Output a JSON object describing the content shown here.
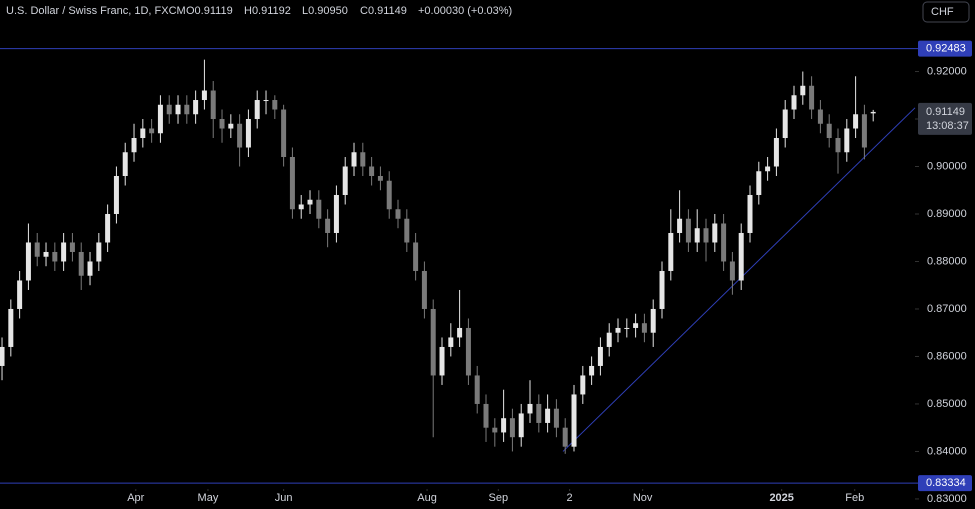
{
  "chart_data": {
    "type": "candlestick",
    "title": "U.S. Dollar / Swiss Franc, 1D, FXCM",
    "ohlc_text": [
      "O0.91119",
      "H0.91192",
      "L0.90950",
      "C0.91149",
      "+0.00030 (+0.03%)"
    ],
    "currency": "CHF",
    "countdown": "13:08:37",
    "up_color": "#e6e6e6",
    "down_color": "#7a7a7a",
    "level_color": "#2f3fb8",
    "open": [
      0.858,
      0.862,
      0.87,
      0.876,
      0.884,
      0.881,
      0.882,
      0.88,
      0.884,
      0.882,
      0.877,
      0.88,
      0.884,
      0.89,
      0.898,
      0.903,
      0.906,
      0.908,
      0.907,
      0.913,
      0.911,
      0.913,
      0.911,
      0.914,
      0.916,
      0.91,
      0.908,
      0.909,
      0.904,
      0.91,
      0.914,
      0.914,
      0.912,
      0.902,
      0.891,
      0.892,
      0.893,
      0.889,
      0.886,
      0.894,
      0.9,
      0.903,
      0.9,
      0.898,
      0.897,
      0.891,
      0.889,
      0.884,
      0.878,
      0.87,
      0.856,
      0.862,
      0.864,
      0.866,
      0.856,
      0.85,
      0.845,
      0.844,
      0.847,
      0.843,
      0.848,
      0.85,
      0.846,
      0.849,
      0.845,
      0.841,
      0.852,
      0.856,
      0.858,
      0.862,
      0.865,
      0.866,
      0.866,
      0.867,
      0.865,
      0.87,
      0.878,
      0.886,
      0.889,
      0.884,
      0.887,
      0.884,
      0.888,
      0.88,
      0.876,
      0.886,
      0.894,
      0.899,
      0.9,
      0.906,
      0.912,
      0.915,
      0.917,
      0.912,
      0.909,
      0.906,
      0.903,
      0.908,
      0.911,
      0.91119
    ],
    "high": [
      0.864,
      0.872,
      0.878,
      0.888,
      0.886,
      0.884,
      0.884,
      0.886,
      0.886,
      0.884,
      0.882,
      0.886,
      0.892,
      0.9,
      0.905,
      0.909,
      0.91,
      0.91,
      0.915,
      0.915,
      0.915,
      0.915,
      0.916,
      0.9225,
      0.918,
      0.912,
      0.911,
      0.911,
      0.912,
      0.916,
      0.916,
      0.915,
      0.913,
      0.904,
      0.894,
      0.895,
      0.895,
      0.891,
      0.896,
      0.902,
      0.905,
      0.905,
      0.902,
      0.9,
      0.899,
      0.893,
      0.891,
      0.886,
      0.88,
      0.872,
      0.864,
      0.867,
      0.874,
      0.868,
      0.858,
      0.852,
      0.847,
      0.853,
      0.849,
      0.85,
      0.855,
      0.852,
      0.852,
      0.851,
      0.847,
      0.854,
      0.858,
      0.86,
      0.864,
      0.867,
      0.868,
      0.868,
      0.869,
      0.869,
      0.872,
      0.88,
      0.891,
      0.895,
      0.891,
      0.891,
      0.889,
      0.89,
      0.89,
      0.882,
      0.888,
      0.896,
      0.901,
      0.902,
      0.908,
      0.914,
      0.917,
      0.92,
      0.919,
      0.914,
      0.911,
      0.908,
      0.91,
      0.919,
      0.913,
      0.91192
    ],
    "low": [
      0.855,
      0.86,
      0.868,
      0.874,
      0.879,
      0.879,
      0.878,
      0.878,
      0.88,
      0.874,
      0.875,
      0.878,
      0.882,
      0.888,
      0.896,
      0.901,
      0.904,
      0.905,
      0.905,
      0.909,
      0.909,
      0.909,
      0.909,
      0.912,
      0.906,
      0.905,
      0.906,
      0.9,
      0.902,
      0.908,
      0.911,
      0.91,
      0.9,
      0.889,
      0.889,
      0.89,
      0.887,
      0.883,
      0.884,
      0.892,
      0.898,
      0.898,
      0.896,
      0.895,
      0.889,
      0.887,
      0.882,
      0.876,
      0.868,
      0.843,
      0.854,
      0.86,
      0.862,
      0.854,
      0.848,
      0.842,
      0.841,
      0.842,
      0.84,
      0.841,
      0.846,
      0.844,
      0.844,
      0.843,
      0.8395,
      0.84,
      0.85,
      0.854,
      0.856,
      0.86,
      0.863,
      0.864,
      0.864,
      0.863,
      0.862,
      0.868,
      0.876,
      0.884,
      0.882,
      0.882,
      0.88,
      0.882,
      0.878,
      0.873,
      0.874,
      0.884,
      0.892,
      0.897,
      0.898,
      0.904,
      0.91,
      0.913,
      0.91,
      0.907,
      0.904,
      0.8985,
      0.901,
      0.906,
      0.9015,
      0.9095
    ],
    "close": [
      0.862,
      0.87,
      0.876,
      0.884,
      0.881,
      0.882,
      0.88,
      0.884,
      0.882,
      0.877,
      0.88,
      0.884,
      0.89,
      0.898,
      0.903,
      0.906,
      0.908,
      0.907,
      0.913,
      0.911,
      0.913,
      0.911,
      0.914,
      0.916,
      0.91,
      0.908,
      0.909,
      0.904,
      0.91,
      0.914,
      0.914,
      0.912,
      0.902,
      0.891,
      0.892,
      0.893,
      0.889,
      0.886,
      0.894,
      0.9,
      0.903,
      0.9,
      0.898,
      0.897,
      0.891,
      0.889,
      0.884,
      0.878,
      0.87,
      0.856,
      0.862,
      0.864,
      0.866,
      0.856,
      0.85,
      0.845,
      0.844,
      0.847,
      0.843,
      0.848,
      0.85,
      0.846,
      0.849,
      0.845,
      0.841,
      0.852,
      0.856,
      0.858,
      0.862,
      0.865,
      0.866,
      0.866,
      0.867,
      0.865,
      0.87,
      0.878,
      0.886,
      0.889,
      0.884,
      0.887,
      0.884,
      0.888,
      0.88,
      0.876,
      0.886,
      0.894,
      0.899,
      0.9,
      0.906,
      0.912,
      0.915,
      0.917,
      0.912,
      0.909,
      0.906,
      0.903,
      0.908,
      0.911,
      0.904,
      0.91149
    ],
    "xlim": [
      -0.23,
      103.75
    ],
    "xticks": [
      {
        "value": 15.2,
        "label": "Apr"
      },
      {
        "value": 23.4,
        "label": "May"
      },
      {
        "value": 32,
        "label": "Jun"
      },
      {
        "value": 48.3,
        "label": "Aug"
      },
      {
        "value": 56.4,
        "label": "Sep"
      },
      {
        "value": 64.5,
        "label": "2"
      },
      {
        "value": 72.8,
        "label": "Nov"
      },
      {
        "value": 88.6,
        "label": "2025"
      },
      {
        "value": 96.9,
        "label": "Feb"
      }
    ],
    "ylim": [
      0.82788,
      0.93506
    ],
    "yticks": [
      {
        "value": 0.83,
        "label": "0.83000"
      },
      {
        "value": 0.84,
        "label": "0.84000"
      },
      {
        "value": 0.85,
        "label": "0.85000"
      },
      {
        "value": 0.86,
        "label": "0.86000"
      },
      {
        "value": 0.87,
        "label": "0.87000"
      },
      {
        "value": 0.88,
        "label": "0.88000"
      },
      {
        "value": 0.89,
        "label": "0.89000"
      },
      {
        "value": 0.9,
        "label": "0.90000"
      },
      {
        "value": 0.91,
        "label": "0.91000"
      },
      {
        "value": 0.92,
        "label": "0.92000"
      }
    ],
    "levels": [
      0.92483,
      0.83334
    ],
    "trendline": {
      "x": [
        63.75,
        103.75
      ],
      "y": [
        0.84,
        0.91236
      ]
    }
  }
}
